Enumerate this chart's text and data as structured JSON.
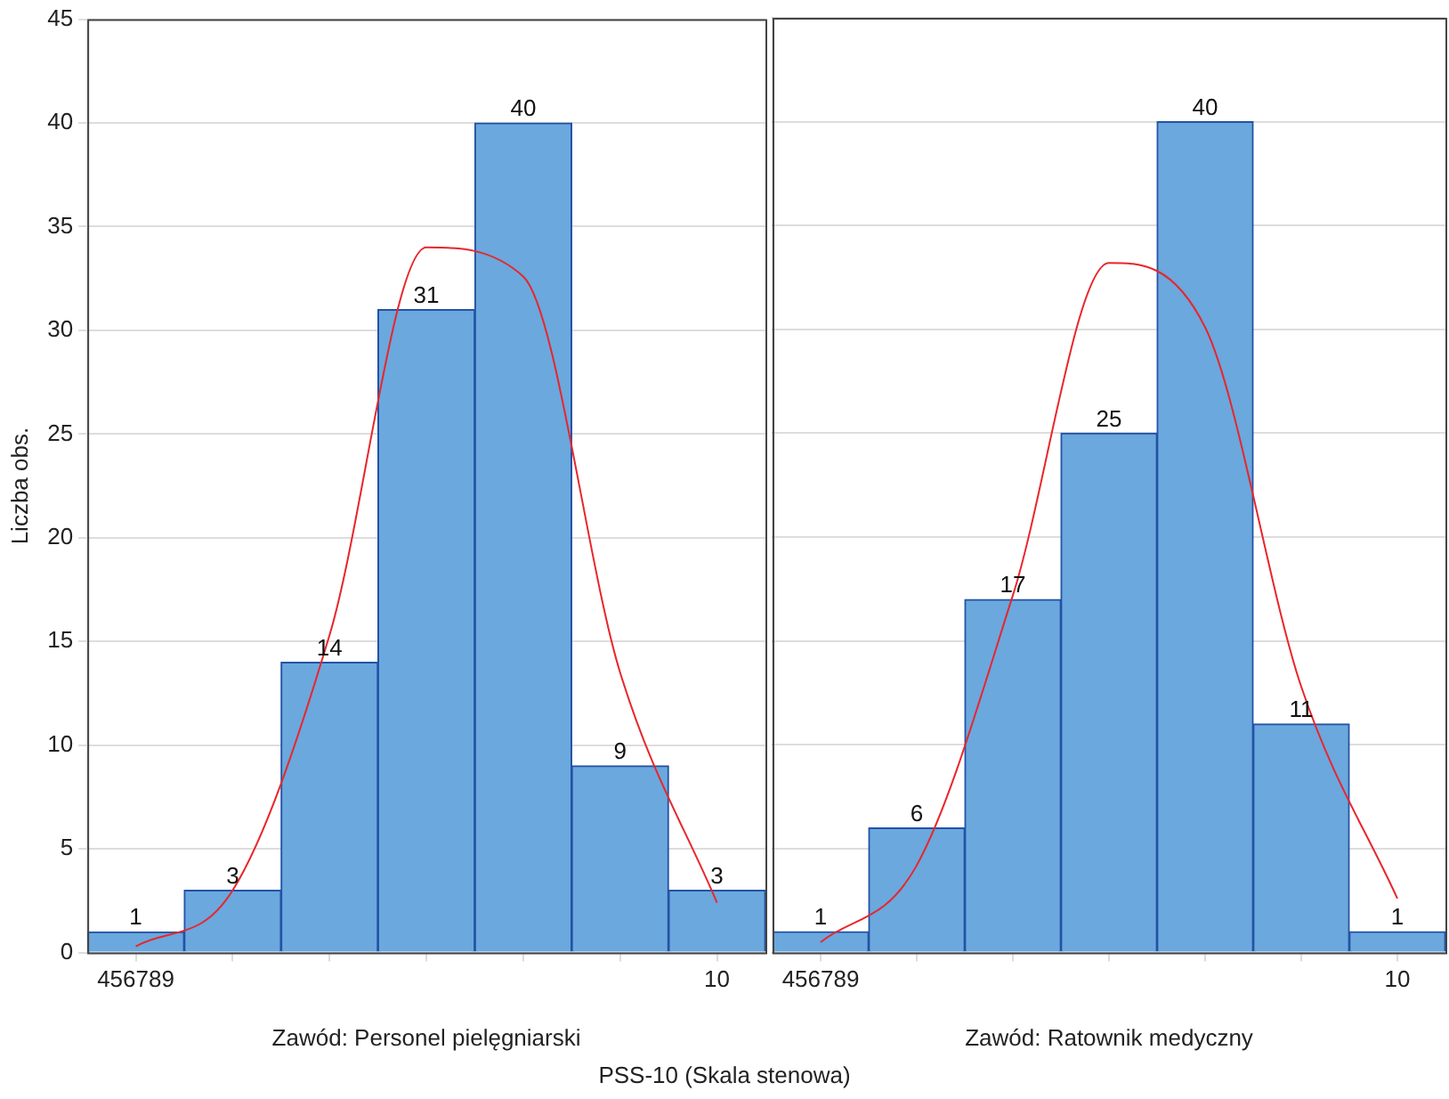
{
  "chart_data": [
    {
      "type": "bar",
      "ylabel": "Liczba obs.",
      "xlabel": "Zawód: Personel pielęgniarski",
      "annotations": [
        "PSS-10 (Skala stenowa)"
      ],
      "categories": [
        "456789",
        null,
        null,
        null,
        null,
        null,
        "10"
      ],
      "ylim": [
        0,
        45
      ],
      "yticks": [
        0,
        5,
        10,
        15,
        20,
        25,
        30,
        35,
        40,
        45
      ],
      "grid": "y",
      "series": [
        {
          "type": "bar",
          "color": "#6aa8de",
          "values": [
            1,
            3,
            14,
            31,
            40,
            9,
            3
          ],
          "value_labels": [
            "1",
            "3",
            "14",
            "31",
            "40",
            "9",
            "3"
          ]
        },
        {
          "type": "line",
          "color": "#e8262b",
          "values": [
            0.3,
            3,
            15.3,
            34,
            32.6,
            13.5,
            2.4
          ]
        }
      ]
    },
    {
      "type": "bar",
      "xlabel": "Zawód: Ratownik medyczny",
      "categories": [
        "456789",
        null,
        null,
        null,
        null,
        null,
        "10"
      ],
      "ylim": [
        0,
        45
      ],
      "yticks": [
        0,
        5,
        10,
        15,
        20,
        25,
        30,
        35,
        40,
        45
      ],
      "grid": "y",
      "tick_labels": "x",
      "series": [
        {
          "type": "bar",
          "color": "#6aa8de",
          "values": [
            1,
            6,
            17,
            25,
            40,
            11,
            1
          ],
          "value_labels": [
            "1",
            "6",
            "17",
            "25",
            "40",
            "11",
            "1"
          ]
        },
        {
          "type": "line",
          "color": "#e8262b",
          "values": [
            0.5,
            4.2,
            17.2,
            33.2,
            30.1,
            12.8,
            2.6
          ]
        }
      ]
    }
  ]
}
